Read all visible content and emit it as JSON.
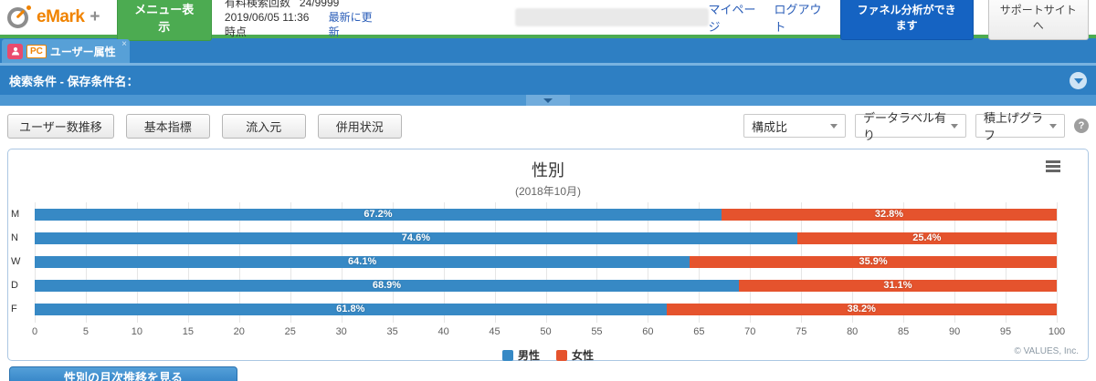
{
  "header": {
    "logo_main": "eMark",
    "logo_plus": "+",
    "menu_button": "メニュー表示",
    "search_count_label": "有料検索回数",
    "search_count_value": "24/9999",
    "timestamp": "2019/06/05 11:36 時点",
    "refresh_link": "最新に更新",
    "mypage_link": "マイページ",
    "logout_link": "ログアウト",
    "funnel_button": "ファネル分析ができます",
    "support_button": "サポートサイトへ"
  },
  "tab": {
    "pc_badge": "PC",
    "label": "ユーザー属性",
    "close": "×"
  },
  "condition_bar": {
    "label": "検索条件 - 保存条件名："
  },
  "toolbar": {
    "buttons": [
      {
        "label": "ユーザー数推移"
      },
      {
        "label": "基本指標"
      },
      {
        "label": "流入元"
      },
      {
        "label": "併用状況"
      }
    ],
    "dropdowns": {
      "composition": "構成比",
      "datalabel": "データラベル有り",
      "stack": "積上げグラフ"
    },
    "help": "?"
  },
  "chart_data": {
    "type": "bar",
    "stacked": true,
    "orientation": "horizontal",
    "title": "性別",
    "subtitle": "(2018年10月)",
    "categories": [
      "M",
      "N",
      "W",
      "D",
      "F"
    ],
    "series": [
      {
        "name": "男性",
        "color": "#3789c5",
        "values": [
          67.2,
          74.6,
          64.1,
          68.9,
          61.8
        ]
      },
      {
        "name": "女性",
        "color": "#e5532d",
        "values": [
          32.8,
          25.4,
          35.9,
          31.1,
          38.2
        ]
      }
    ],
    "value_suffix": "%",
    "xlim": [
      0,
      100
    ],
    "x_ticks": [
      0,
      5,
      10,
      15,
      20,
      25,
      30,
      35,
      40,
      45,
      50,
      55,
      60,
      65,
      70,
      75,
      80,
      85,
      90,
      95,
      100
    ],
    "grid": true,
    "legend_position": "bottom",
    "credits": "© VALUES, Inc."
  },
  "footer": {
    "monthly_button": "性別の月次推移を見る"
  }
}
